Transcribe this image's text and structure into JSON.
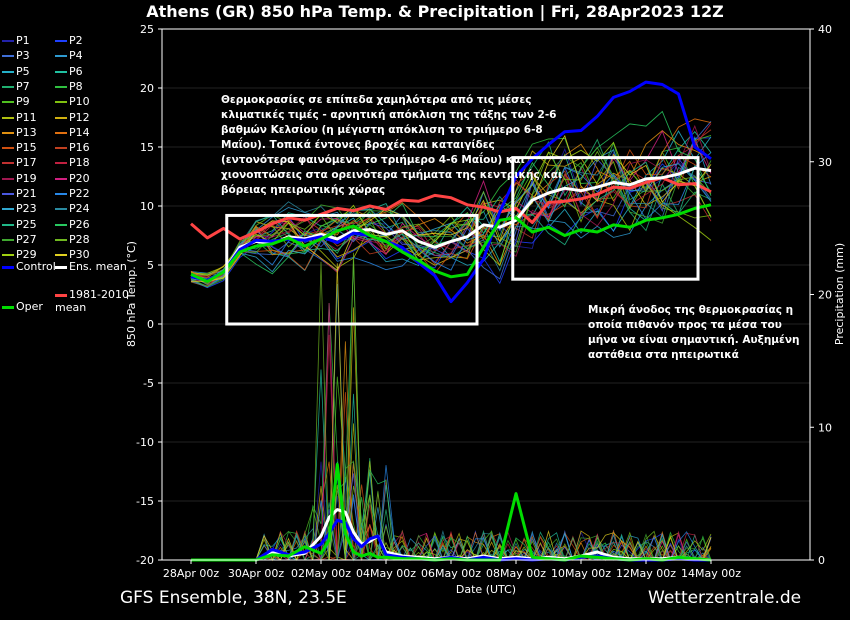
{
  "title": "Athens  (GR)  850 hPa Temp. & Precipitation | Fri, 28Apr2023 12Z",
  "footer": {
    "left": "GFS Ensemble, 38N, 23.5E",
    "right": "Wetterzentrale.de"
  },
  "annotations": {
    "box1_text": "Θερμοκρασίες σε επίπεδα χαμηλότερα από τις μέσες κλιματικές τιμές - αρνητική απόκλιση της τάξης των 2-6 βαθμών Κελσίου (η μέγιστη απόκλιση το τριήμερο 6-8 Μαΐου). Τοπικά έντονες βροχές και καταιγίδες (εντονότερα φαινόμενα το τριήμερο 4-6 Μαΐου) και χιονοπτώσεις στα ορεινότερα τμήματα της κεντρικής και βόρειας ηπειρωτικής χώρας",
    "box2_text": "Μικρή άνοδος της θερμοκρασίας η οποία πιθανόν προς τα μέσα του μήνα να είναι σημαντική. Αυξημένη αστάθεια στα ηπειρωτικά"
  },
  "colors": {
    "control": "#0000ff",
    "ens_mean": "#ffffff",
    "oper": "#00dd00",
    "climate_mean": "#ff4444",
    "background": "#000000"
  },
  "legend": [
    {
      "label": "P1",
      "color": "#2222aa"
    },
    {
      "label": "P2",
      "color": "#1e40ff"
    },
    {
      "label": "P3",
      "color": "#3f6fd8"
    },
    {
      "label": "P4",
      "color": "#2e9ad0"
    },
    {
      "label": "P5",
      "color": "#24b0c8"
    },
    {
      "label": "P6",
      "color": "#20c0a0"
    },
    {
      "label": "P7",
      "color": "#20b070"
    },
    {
      "label": "P8",
      "color": "#30c040"
    },
    {
      "label": "P9",
      "color": "#50c020"
    },
    {
      "label": "P10",
      "color": "#80c010"
    },
    {
      "label": "P11",
      "color": "#b0c010"
    },
    {
      "label": "P12",
      "color": "#d0b010"
    },
    {
      "label": "P13",
      "color": "#e09010"
    },
    {
      "label": "P14",
      "color": "#e07010"
    },
    {
      "label": "P15",
      "color": "#d05010"
    },
    {
      "label": "P16",
      "color": "#c04020"
    },
    {
      "label": "P17",
      "color": "#c03030"
    },
    {
      "label": "P18",
      "color": "#c02040"
    },
    {
      "label": "P19",
      "color": "#a01850"
    },
    {
      "label": "P20",
      "color": "#d02080"
    },
    {
      "label": "P21",
      "color": "#4a58e0"
    },
    {
      "label": "P22",
      "color": "#2888e8"
    },
    {
      "label": "P23",
      "color": "#30a8d0"
    },
    {
      "label": "P24",
      "color": "#2a8aa0"
    },
    {
      "label": "P25",
      "color": "#20b888"
    },
    {
      "label": "P26",
      "color": "#28c860"
    },
    {
      "label": "P27",
      "color": "#40a830"
    },
    {
      "label": "P28",
      "color": "#70b820"
    },
    {
      "label": "P29",
      "color": "#a0d010"
    },
    {
      "label": "P30",
      "color": "#e0d020"
    },
    {
      "label": "Control",
      "color": "#0000ff"
    },
    {
      "label": "Ens. mean",
      "color": "#ffffff"
    },
    {
      "label": "Oper",
      "color": "#00dd00"
    },
    {
      "label": "1981-2010\nmean",
      "color": "#ff4444"
    }
  ],
  "chart_data": {
    "type": "line",
    "title": "Athens  (GR)  850 hPa Temp. & Precipitation | Fri, 28Apr2023 12Z",
    "xlabel": "Date (UTC)",
    "ylabel": "850 hPa Temp. (°C)",
    "y2label": "Precipitation (mm)",
    "x_ticks": [
      "28Apr 00z",
      "30Apr 00z",
      "02May 00z",
      "04May 00z",
      "06May 00z",
      "08May 00z",
      "10May 00z",
      "12May 00z",
      "14May 00z"
    ],
    "x_range_days": [
      0,
      16
    ],
    "ylim": [
      -20,
      25
    ],
    "y_ticks": [
      -20,
      -15,
      -10,
      -5,
      0,
      5,
      10,
      15,
      20,
      25
    ],
    "y2lim": [
      0,
      40
    ],
    "y2_ticks": [
      0,
      10,
      20,
      30,
      40
    ],
    "annotation_boxes_temp": [
      {
        "x_days": [
          1.1,
          8.8
        ],
        "y": [
          0,
          9.2
        ]
      },
      {
        "x_days": [
          9.9,
          15.6
        ],
        "y": [
          3.8,
          14.1
        ]
      }
    ],
    "series": [
      {
        "name": "1981-2010\nmean",
        "x_days": [
          0,
          0.5,
          1,
          1.5,
          2,
          2.5,
          3,
          3.5,
          4,
          4.5,
          5,
          5.5,
          6,
          6.5,
          7,
          7.5,
          8,
          8.5,
          9,
          9.5,
          10,
          10.5,
          11,
          11.5,
          12,
          12.5,
          13,
          13.5,
          14,
          14.5,
          15,
          15.5,
          16
        ],
        "values": [
          8.5,
          7.3,
          8.1,
          7.2,
          7.8,
          8.5,
          9.0,
          8.8,
          9.3,
          9.8,
          9.6,
          10.0,
          9.7,
          10.5,
          10.4,
          10.9,
          10.7,
          10.1,
          9.9,
          9.5,
          9.8,
          8.6,
          10.3,
          10.4,
          10.6,
          11.0,
          11.6,
          11.5,
          12.0,
          12.4,
          11.8,
          11.9,
          11.2
        ]
      },
      {
        "name": "Ens. mean",
        "x_days": [
          0,
          0.5,
          1,
          1.5,
          2,
          2.5,
          3,
          3.5,
          4,
          4.5,
          5,
          5.5,
          6,
          6.5,
          7,
          7.5,
          8,
          8.5,
          9,
          9.5,
          10,
          10.5,
          11,
          11.5,
          12,
          12.5,
          13,
          13.5,
          14,
          14.5,
          15,
          15.5,
          16
        ],
        "values": [
          4.0,
          3.7,
          4.4,
          6.5,
          7.0,
          6.8,
          7.4,
          7.2,
          7.6,
          7.2,
          7.9,
          8.0,
          7.6,
          7.9,
          7.0,
          6.5,
          7.0,
          7.4,
          8.4,
          8.2,
          8.8,
          10.5,
          11.1,
          11.5,
          11.3,
          11.6,
          12.0,
          11.8,
          12.3,
          12.4,
          12.7,
          13.2,
          13.0
        ]
      },
      {
        "name": "Control",
        "x_days": [
          0,
          0.5,
          1,
          1.5,
          2,
          2.5,
          3,
          3.5,
          4,
          4.5,
          5,
          5.5,
          6,
          6.5,
          7,
          7.5,
          8,
          8.5,
          9,
          9.5,
          10,
          10.5,
          11,
          11.5,
          12,
          12.5,
          13,
          13.5,
          14,
          14.5,
          15,
          15.5,
          16
        ],
        "values": [
          4.0,
          3.7,
          4.4,
          6.3,
          7.1,
          7.0,
          7.2,
          7.1,
          7.4,
          6.9,
          7.7,
          7.5,
          7.0,
          6.5,
          5.2,
          4.1,
          1.9,
          3.5,
          5.5,
          9.5,
          12.5,
          14.0,
          15.2,
          16.3,
          16.4,
          17.6,
          19.2,
          19.7,
          20.5,
          20.3,
          19.5,
          15.0,
          14.0
        ]
      },
      {
        "name": "Oper",
        "x_days": [
          0,
          0.5,
          1,
          1.5,
          2,
          2.5,
          3,
          3.5,
          4,
          4.5,
          5,
          5.5,
          6,
          6.5,
          7,
          7.5,
          8,
          8.5,
          9,
          9.5,
          10,
          10.5,
          11,
          11.5,
          12,
          12.5,
          13,
          13.5,
          14,
          14.5,
          15,
          15.5,
          16
        ],
        "values": [
          4.2,
          3.6,
          4.4,
          6.1,
          6.6,
          6.8,
          7.3,
          6.6,
          7.2,
          7.9,
          8.3,
          7.5,
          7.0,
          6.1,
          5.4,
          4.5,
          4.0,
          4.2,
          6.5,
          8.8,
          9.0,
          7.8,
          8.2,
          7.5,
          8.0,
          7.8,
          8.4,
          8.2,
          8.8,
          9.0,
          9.3,
          9.8,
          10.1
        ]
      },
      {
        "name": "Ens. mean precip",
        "axis": "y2",
        "x_days": [
          0,
          1,
          2,
          2.5,
          3,
          3.5,
          4,
          4.25,
          4.5,
          4.75,
          5,
          5.25,
          5.5,
          5.75,
          6,
          6.5,
          7,
          7.5,
          8,
          8.5,
          9,
          9.5,
          10,
          10.5,
          11,
          11.5,
          12,
          12.5,
          13,
          13.5,
          14,
          14.5,
          15,
          15.5,
          16
        ],
        "values": [
          0,
          0,
          0,
          0.6,
          0.3,
          0.5,
          1.8,
          3.2,
          3.8,
          3.6,
          2.1,
          1.2,
          1.4,
          1.8,
          0.6,
          0.3,
          0.2,
          0.1,
          0.2,
          0.1,
          0.3,
          0.1,
          0.2,
          0.1,
          0.2,
          0.1,
          0.3,
          0.6,
          0.2,
          0.1,
          0.1,
          0.1,
          0.2,
          0.1,
          0
        ]
      },
      {
        "name": "Control precip",
        "axis": "y2",
        "x_days": [
          0,
          1,
          2,
          2.5,
          3,
          3.5,
          4,
          4.25,
          4.5,
          4.75,
          5,
          5.25,
          5.5,
          5.75,
          6,
          6.5,
          7,
          7.5,
          8,
          8.5,
          9,
          9.5,
          10,
          10.5,
          11,
          11.5,
          12,
          12.5,
          13,
          13.5,
          14,
          14.5,
          15,
          15.5,
          16
        ],
        "values": [
          0,
          0,
          0,
          0.8,
          0.4,
          0.6,
          1.2,
          2.0,
          3.0,
          2.8,
          1.6,
          1.0,
          1.6,
          1.8,
          0.4,
          0.2,
          0.1,
          0,
          0.2,
          0,
          0.2,
          0,
          0.1,
          0,
          0.1,
          0,
          0.2,
          0.3,
          0.1,
          0,
          0,
          0,
          0.1,
          0,
          0
        ]
      },
      {
        "name": "Oper precip",
        "axis": "y2",
        "x_days": [
          0,
          1,
          2,
          2.5,
          3,
          3.5,
          4,
          4.25,
          4.5,
          4.75,
          5,
          5.25,
          5.5,
          5.75,
          6,
          6.5,
          7,
          7.5,
          8,
          8.5,
          9,
          9.5,
          10,
          10.5,
          11,
          11.5,
          12,
          12.5,
          13,
          13.5,
          14,
          14.5,
          15,
          15.5,
          16
        ],
        "values": [
          0,
          0,
          0,
          0.4,
          0.3,
          1.0,
          0.5,
          1.5,
          7.2,
          2.0,
          0.6,
          0.3,
          0.5,
          0.2,
          0.2,
          0.1,
          0.1,
          0,
          0.1,
          0,
          0,
          0,
          5.0,
          0.2,
          0.1,
          0,
          0.3,
          0.2,
          0.1,
          0,
          0.1,
          0,
          0.2,
          0.1,
          0
        ]
      }
    ]
  }
}
